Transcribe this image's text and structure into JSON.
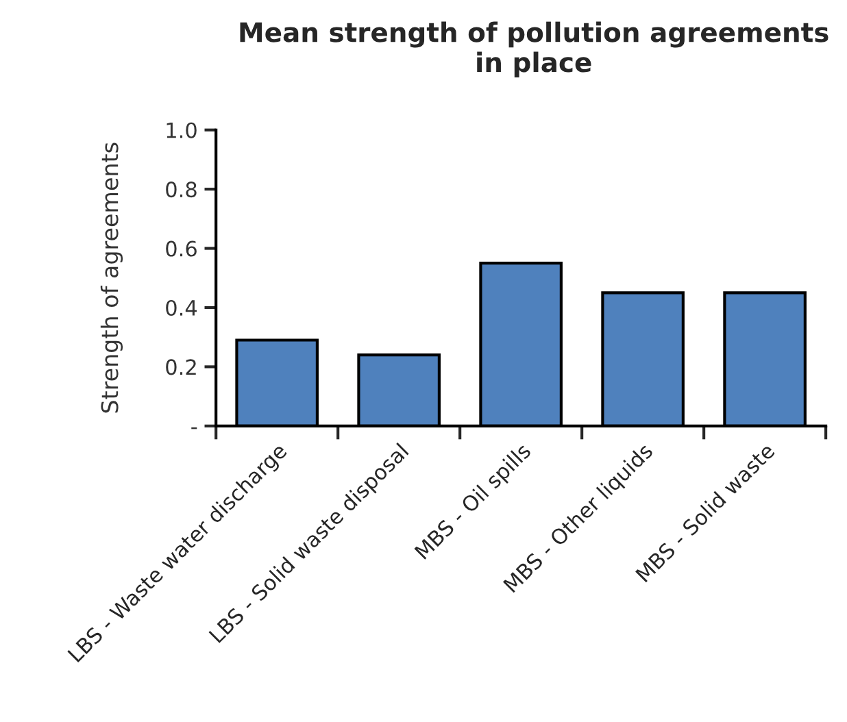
{
  "chart_data": {
    "type": "bar",
    "title": "Mean strength of pollution agreements in place",
    "ylabel": "Strength of agreements",
    "categories": [
      "LBS - Waste water discharge",
      "LBS - Solid waste disposal",
      "MBS - Oil spills",
      "MBS - Other liquids",
      "MBS - Solid waste"
    ],
    "values": [
      0.29,
      0.24,
      0.55,
      0.45,
      0.45
    ],
    "color": "#4f81bd",
    "ylim": [
      0,
      1.0
    ],
    "yticks": [
      {
        "value": 0,
        "label": "-"
      },
      0.2,
      0.4,
      0.6,
      0.8,
      {
        "value": 1.0,
        "label": "1.0"
      }
    ],
    "grid": false
  }
}
